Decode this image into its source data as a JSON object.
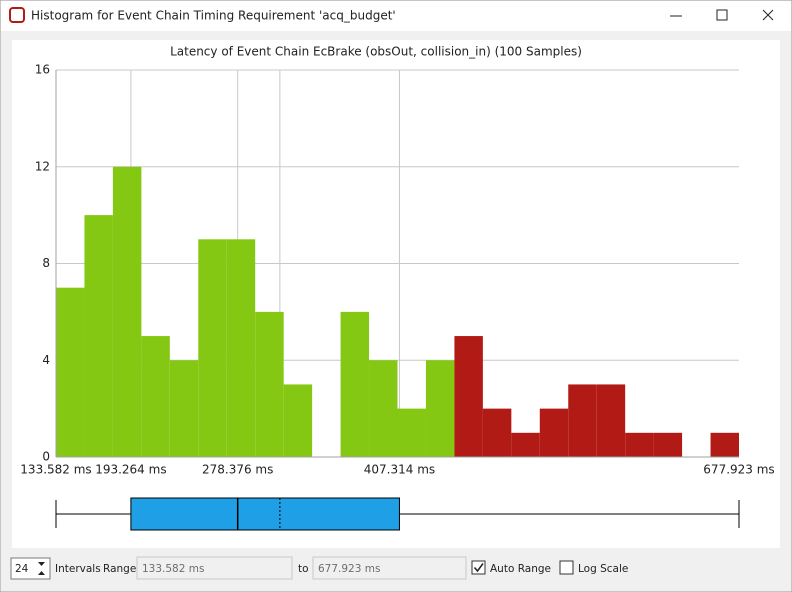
{
  "window": {
    "title": "Histogram for Event Chain Timing Requirement 'acq_budget'"
  },
  "chart_data": {
    "type": "histogram",
    "title": "Latency of Event Chain EcBrake (obsOut, collision_in) (100 Samples)",
    "bins": [
      133.582,
      156.263,
      178.944,
      201.625,
      224.305,
      246.986,
      269.667,
      292.348,
      315.029,
      337.71,
      360.391,
      383.072,
      405.753,
      428.433,
      451.114,
      473.795,
      496.476,
      519.157,
      541.838,
      564.519,
      587.2,
      609.881,
      632.561,
      655.242,
      677.923
    ],
    "counts": [
      7,
      10,
      12,
      5,
      4,
      9,
      9,
      6,
      3,
      0,
      6,
      4,
      2,
      4,
      5,
      2,
      1,
      2,
      3,
      3,
      1,
      1,
      0,
      1
    ],
    "colors": [
      "#84c814",
      "#84c814",
      "#84c814",
      "#84c814",
      "#84c814",
      "#84c814",
      "#84c814",
      "#84c814",
      "#84c814",
      "#84c814",
      "#84c814",
      "#84c814",
      "#84c814",
      "#84c814",
      "#b21a16",
      "#b21a16",
      "#b21a16",
      "#b21a16",
      "#b21a16",
      "#b21a16",
      "#b21a16",
      "#b21a16",
      "#b21a16",
      "#b21a16"
    ],
    "xlim": [
      133.582,
      677.923
    ],
    "xticks": [
      {
        "value": 133.582,
        "label": "133.582 ms"
      },
      {
        "value": 193.264,
        "label": "193.264 ms"
      },
      {
        "value": 278.376,
        "label": "278.376 ms"
      },
      {
        "value": 407.314,
        "label": "407.314 ms"
      },
      {
        "value": 677.923,
        "label": "677.923 ms"
      }
    ],
    "ylim": [
      0,
      16
    ],
    "yticks": [
      0,
      4,
      8,
      12,
      16
    ],
    "grid": true,
    "boxplot": {
      "min": 133.582,
      "q1": 193.264,
      "median": 278.376,
      "mean": 312,
      "q3": 407.314,
      "max": 677.923,
      "color": "#1f9fe6"
    }
  },
  "controls": {
    "intervals": {
      "value": 24,
      "label": "Intervals"
    },
    "range_label": "Range:",
    "range_from": "133.582 ms",
    "to_label": "to",
    "range_to": "677.923 ms",
    "auto_range": {
      "label": "Auto Range",
      "checked": true
    },
    "log_scale": {
      "label": "Log Scale",
      "checked": false
    }
  }
}
